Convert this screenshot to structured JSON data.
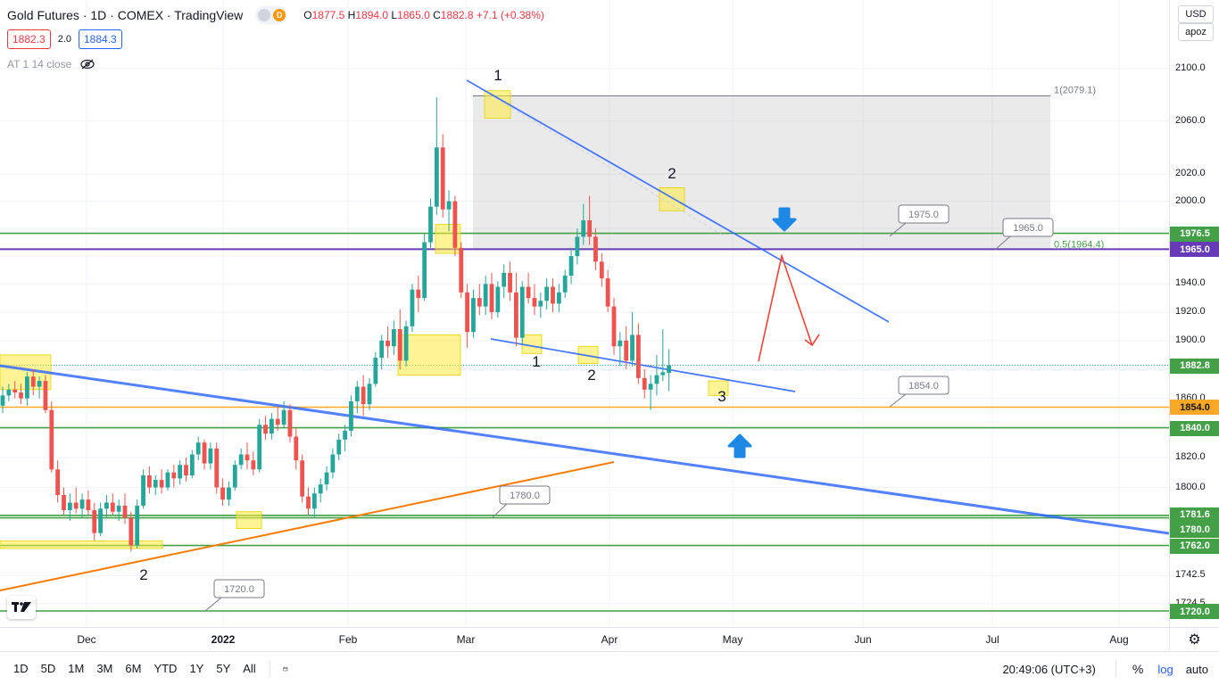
{
  "header": {
    "title": "Gold Futures · 1D · COMEX · TradingView",
    "flag_letter": "D",
    "ohlc": {
      "o_label": "O",
      "o": "1877.5",
      "h_label": "H",
      "h": "1894.0",
      "l_label": "L",
      "l": "1865.0",
      "c_label": "C",
      "c": "1882.8",
      "change": "+7.1 (+0.38%)"
    },
    "sell_price": "1882.3",
    "spread": "2.0",
    "buy_price": "1884.3",
    "indicator": "AT 1 14 close"
  },
  "price_scale": {
    "currency": "USD",
    "account": "apoz",
    "ticks": [
      "2100.0",
      "2060.0",
      "2020.0",
      "2000.0",
      "1940.0",
      "1920.0",
      "1900.0",
      "1860.0",
      "1820.0",
      "1800.0",
      "1742.5",
      "1724.5"
    ],
    "labels": [
      {
        "text": "1976.5",
        "value": 1976.5,
        "color": "#43a047"
      },
      {
        "text": "1965.0",
        "value": 1965.0,
        "color": "#673ab7"
      },
      {
        "text": "1882.8",
        "value": 1882.8,
        "color": "#43a047"
      },
      {
        "text": "1854.0",
        "value": 1854.0,
        "color": "#f9a825",
        "text_color": "#131722"
      },
      {
        "text": "1840.0",
        "value": 1840.0,
        "color": "#43a047"
      },
      {
        "text": "1781.6",
        "value": 1781.6,
        "color": "#43a047"
      },
      {
        "text": "1780.0",
        "value": 1780.0,
        "color": "#43a047"
      },
      {
        "text": "1762.0",
        "value": 1762.0,
        "color": "#43a047"
      },
      {
        "text": "1720.0",
        "value": 1720.0,
        "color": "#43a047"
      }
    ]
  },
  "time_axis": {
    "labels": [
      "Dec",
      "2022",
      "Feb",
      "Mar",
      "Apr",
      "May",
      "Jun",
      "Jul",
      "Aug"
    ]
  },
  "bottom_bar": {
    "ranges": [
      "1D",
      "5D",
      "1M",
      "3M",
      "6M",
      "YTD",
      "1Y",
      "5Y",
      "All"
    ],
    "clock": "20:49:06 (UTC+3)",
    "percent": "%",
    "log": "log",
    "auto": "auto"
  },
  "chart_data": {
    "type": "candlestick",
    "title": "Gold Futures · 1D · COMEX",
    "yscale": "log",
    "y_visible_range": [
      1712,
      2130
    ],
    "x_range": [
      "2021-11-14",
      "2022-08-20"
    ],
    "horizontal_levels": [
      {
        "value": 1976.5,
        "color": "#43a047"
      },
      {
        "value": 1965.0,
        "color": "#673ab7"
      },
      {
        "value": 1854.0,
        "color": "#f9a825"
      },
      {
        "value": 1840.0,
        "color": "#43a047"
      },
      {
        "value": 1781.6,
        "color": "#43a047"
      },
      {
        "value": 1780.0,
        "color": "#43a047"
      },
      {
        "value": 1762.0,
        "color": "#43a047"
      },
      {
        "value": 1720.0,
        "color": "#43a047"
      }
    ],
    "callouts": [
      "1975.0",
      "1965.0",
      "1854.0",
      "1780.0",
      "1720.0"
    ],
    "fib_labels": [
      "1(2079.1)",
      "0.5(1964.4)"
    ],
    "wave_labels": [
      "1",
      "2",
      "1",
      "2",
      "3",
      "2"
    ],
    "candles_ohlc": [
      [
        1855,
        1868,
        1850,
        1862
      ],
      [
        1862,
        1870,
        1858,
        1866
      ],
      [
        1866,
        1872,
        1860,
        1864
      ],
      [
        1864,
        1870,
        1856,
        1860
      ],
      [
        1860,
        1878,
        1855,
        1875
      ],
      [
        1875,
        1880,
        1862,
        1868
      ],
      [
        1868,
        1875,
        1860,
        1872
      ],
      [
        1872,
        1876,
        1850,
        1852
      ],
      [
        1852,
        1858,
        1810,
        1812
      ],
      [
        1812,
        1818,
        1790,
        1795
      ],
      [
        1795,
        1800,
        1782,
        1785
      ],
      [
        1785,
        1796,
        1778,
        1790
      ],
      [
        1790,
        1800,
        1783,
        1786
      ],
      [
        1786,
        1796,
        1780,
        1792
      ],
      [
        1792,
        1798,
        1782,
        1785
      ],
      [
        1785,
        1790,
        1765,
        1770
      ],
      [
        1770,
        1790,
        1768,
        1786
      ],
      [
        1786,
        1795,
        1780,
        1790
      ],
      [
        1790,
        1796,
        1782,
        1784
      ],
      [
        1784,
        1792,
        1778,
        1788
      ],
      [
        1788,
        1796,
        1776,
        1780
      ],
      [
        1780,
        1784,
        1758,
        1762
      ],
      [
        1762,
        1792,
        1760,
        1788
      ],
      [
        1788,
        1812,
        1786,
        1808
      ],
      [
        1808,
        1814,
        1796,
        1800
      ],
      [
        1800,
        1808,
        1795,
        1805
      ],
      [
        1805,
        1812,
        1796,
        1800
      ],
      [
        1800,
        1812,
        1798,
        1810
      ],
      [
        1810,
        1815,
        1800,
        1806
      ],
      [
        1806,
        1818,
        1802,
        1815
      ],
      [
        1815,
        1820,
        1804,
        1808
      ],
      [
        1808,
        1825,
        1806,
        1822
      ],
      [
        1822,
        1834,
        1818,
        1830
      ],
      [
        1830,
        1832,
        1812,
        1816
      ],
      [
        1816,
        1830,
        1812,
        1826
      ],
      [
        1826,
        1830,
        1796,
        1800
      ],
      [
        1800,
        1806,
        1788,
        1792
      ],
      [
        1792,
        1804,
        1788,
        1800
      ],
      [
        1800,
        1818,
        1798,
        1815
      ],
      [
        1815,
        1826,
        1812,
        1822
      ],
      [
        1822,
        1830,
        1812,
        1818
      ],
      [
        1818,
        1824,
        1808,
        1812
      ],
      [
        1812,
        1846,
        1810,
        1842
      ],
      [
        1842,
        1848,
        1832,
        1836
      ],
      [
        1836,
        1850,
        1832,
        1846
      ],
      [
        1846,
        1854,
        1838,
        1842
      ],
      [
        1842,
        1858,
        1840,
        1852
      ],
      [
        1852,
        1856,
        1830,
        1834
      ],
      [
        1834,
        1840,
        1812,
        1818
      ],
      [
        1818,
        1822,
        1790,
        1794
      ],
      [
        1794,
        1800,
        1782,
        1786
      ],
      [
        1786,
        1800,
        1780,
        1796
      ],
      [
        1796,
        1806,
        1790,
        1802
      ],
      [
        1802,
        1814,
        1798,
        1810
      ],
      [
        1810,
        1826,
        1806,
        1822
      ],
      [
        1822,
        1836,
        1818,
        1832
      ],
      [
        1832,
        1842,
        1824,
        1838
      ],
      [
        1838,
        1862,
        1834,
        1858
      ],
      [
        1858,
        1872,
        1850,
        1868
      ],
      [
        1868,
        1876,
        1848,
        1856
      ],
      [
        1856,
        1874,
        1852,
        1870
      ],
      [
        1870,
        1892,
        1868,
        1888
      ],
      [
        1888,
        1904,
        1880,
        1900
      ],
      [
        1900,
        1910,
        1888,
        1896
      ],
      [
        1896,
        1914,
        1890,
        1908
      ],
      [
        1908,
        1922,
        1880,
        1886
      ],
      [
        1886,
        1914,
        1882,
        1910
      ],
      [
        1910,
        1940,
        1906,
        1936
      ],
      [
        1936,
        1946,
        1920,
        1930
      ],
      [
        1930,
        1976,
        1928,
        1970
      ],
      [
        1970,
        2002,
        1966,
        1996
      ],
      [
        1996,
        2078,
        1990,
        2040
      ],
      [
        2040,
        2050,
        1988,
        1994
      ],
      [
        1994,
        2008,
        1978,
        2000
      ],
      [
        2000,
        2004,
        1960,
        1966
      ],
      [
        1966,
        1970,
        1930,
        1934
      ],
      [
        1934,
        1940,
        1895,
        1906
      ],
      [
        1906,
        1936,
        1902,
        1930
      ],
      [
        1930,
        1940,
        1918,
        1924
      ],
      [
        1924,
        1946,
        1918,
        1940
      ],
      [
        1940,
        1948,
        1915,
        1920
      ],
      [
        1920,
        1942,
        1916,
        1938
      ],
      [
        1938,
        1954,
        1930,
        1948
      ],
      [
        1948,
        1956,
        1928,
        1934
      ],
      [
        1934,
        1948,
        1896,
        1902
      ],
      [
        1902,
        1942,
        1898,
        1938
      ],
      [
        1938,
        1948,
        1926,
        1930
      ],
      [
        1930,
        1940,
        1918,
        1924
      ],
      [
        1924,
        1934,
        1916,
        1928
      ],
      [
        1928,
        1944,
        1922,
        1938
      ],
      [
        1938,
        1944,
        1920,
        1926
      ],
      [
        1926,
        1940,
        1920,
        1934
      ],
      [
        1934,
        1950,
        1930,
        1946
      ],
      [
        1946,
        1966,
        1940,
        1960
      ],
      [
        1960,
        1980,
        1954,
        1974
      ],
      [
        1974,
        1998,
        1968,
        1986
      ],
      [
        1986,
        2004,
        1968,
        1974
      ],
      [
        1974,
        1980,
        1950,
        1956
      ],
      [
        1956,
        1962,
        1938,
        1944
      ],
      [
        1944,
        1950,
        1920,
        1924
      ],
      [
        1924,
        1930,
        1890,
        1896
      ],
      [
        1896,
        1906,
        1882,
        1900
      ],
      [
        1900,
        1910,
        1880,
        1886
      ],
      [
        1886,
        1920,
        1882,
        1904
      ],
      [
        1904,
        1912,
        1870,
        1874
      ],
      [
        1874,
        1880,
        1860,
        1866
      ],
      [
        1866,
        1876,
        1852,
        1870
      ],
      [
        1870,
        1890,
        1862,
        1876
      ],
      [
        1876,
        1908,
        1872,
        1878
      ],
      [
        1877.5,
        1894,
        1865,
        1882.8
      ]
    ],
    "grid": true,
    "legend": "top-left"
  }
}
